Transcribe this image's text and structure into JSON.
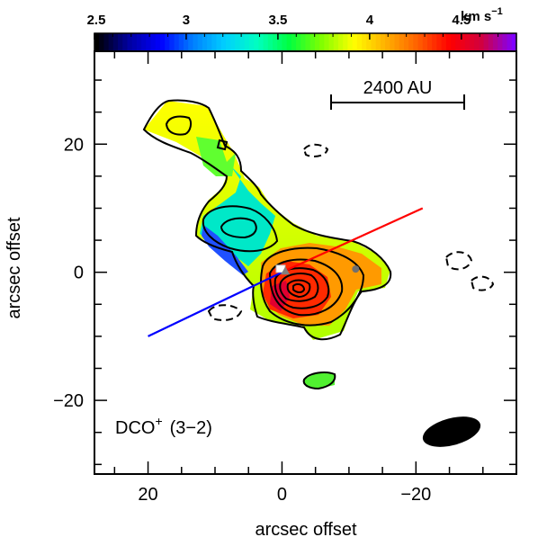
{
  "chart_data": {
    "type": "heatmap",
    "title": "",
    "xlabel": "arcsec offset",
    "ylabel": "arcsec offset",
    "xlim": [
      28,
      -35
    ],
    "ylim": [
      -31.5,
      34.5
    ],
    "x_ticks": [
      20,
      0,
      -20
    ],
    "x_tick_labels": [
      "20",
      "0",
      "−20"
    ],
    "y_ticks": [
      20,
      0,
      -20
    ],
    "y_tick_labels": [
      "20",
      "0",
      "−20"
    ],
    "colorbar": {
      "range": [
        2.5,
        4.8
      ],
      "ticks": [
        2.5,
        3,
        3.5,
        4,
        4.5
      ],
      "tick_labels": [
        "2.5",
        "3",
        "3.5",
        "4",
        "4.5"
      ],
      "unit_main": "km s",
      "unit_exp": "−1",
      "colors": [
        "#000000",
        "#0000a0",
        "#0000ff",
        "#0080ff",
        "#00d0ff",
        "#00ffc0",
        "#00ff40",
        "#80ff00",
        "#ffff00",
        "#ffb000",
        "#ff6000",
        "#ff0000",
        "#d00040",
        "#8000ff"
      ]
    },
    "line_label": "DCO",
    "line_superscript": "+",
    "line_transition": "(3−2)",
    "scalebar_label": "2400 AU",
    "outflow_red": {
      "x": [
        0,
        -21
      ],
      "y": [
        0,
        10
      ],
      "color": "#ff0000"
    },
    "outflow_blue": {
      "x": [
        0,
        20
      ],
      "y": [
        0,
        -10
      ],
      "color": "#0000ff"
    },
    "marker_grey_circle": {
      "x": -11,
      "y": 0.5
    },
    "marker_grey_triangle": {
      "x": -0.5,
      "y": 0.2
    },
    "marker_white_square": {
      "x": 0.2,
      "y": 0.4
    }
  }
}
